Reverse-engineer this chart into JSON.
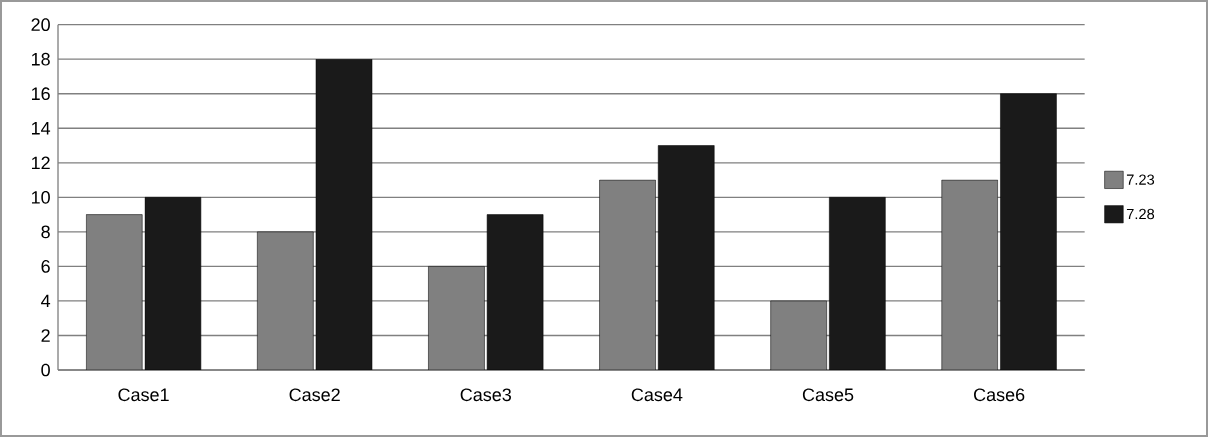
{
  "chart_data": {
    "type": "bar",
    "categories": [
      "Case1",
      "Case2",
      "Case3",
      "Case4",
      "Case5",
      "Case6"
    ],
    "series": [
      {
        "name": "7.23",
        "color": "#808080",
        "values": [
          9,
          8,
          6,
          11,
          4,
          11
        ]
      },
      {
        "name": "7.28",
        "color": "#1a1a1a",
        "values": [
          10,
          18,
          9,
          13,
          10,
          16
        ]
      }
    ],
    "ylim": [
      0,
      20
    ],
    "yticks": [
      0,
      2,
      4,
      6,
      8,
      10,
      12,
      14,
      16,
      18,
      20
    ],
    "grid": "y",
    "legend": "right"
  }
}
